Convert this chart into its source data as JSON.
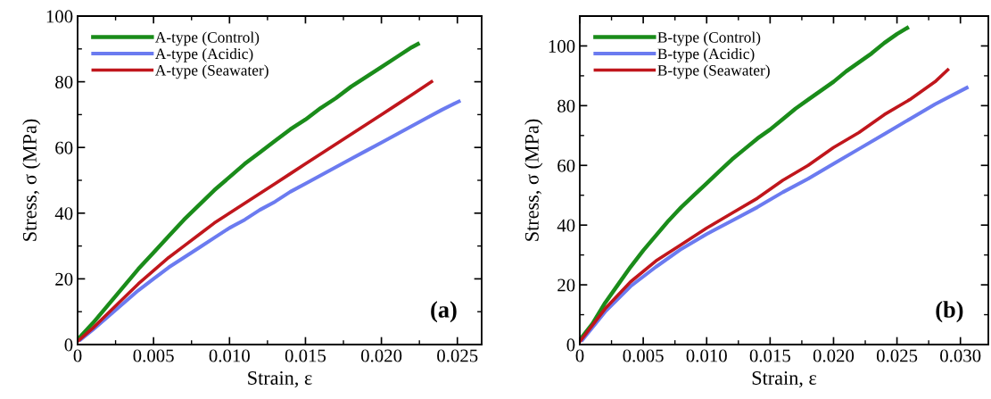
{
  "chart_data": [
    {
      "type": "line",
      "xlabel": "Strain, ε",
      "ylabel": "Stress, σ (MPa)",
      "annotations": [
        "(a)"
      ],
      "legend": "top left",
      "grid": false,
      "xlim": [
        0,
        0.0266
      ],
      "ylim": [
        0,
        100
      ],
      "xticks": [
        0,
        {
          "value": 0.0025,
          "label": null
        },
        0.005,
        {
          "value": 0.0075,
          "label": null
        },
        {
          "value": 0.01,
          "label": "0.010"
        },
        {
          "value": 0.0125,
          "label": null
        },
        0.015,
        {
          "value": 0.0175,
          "label": null
        },
        {
          "value": 0.02,
          "label": "0.020"
        },
        {
          "value": 0.0225,
          "label": null
        },
        0.025
      ],
      "yticks": [
        0,
        {
          "value": 10,
          "label": null
        },
        20,
        {
          "value": 30,
          "label": null
        },
        40,
        {
          "value": 50,
          "label": null
        },
        60,
        {
          "value": 70,
          "label": null
        },
        80,
        {
          "value": 90,
          "label": null
        },
        100
      ],
      "series": [
        {
          "name": "A-type (Control)",
          "color": "#1a8c1a",
          "x": [
            0,
            0.001,
            0.002,
            0.003,
            0.004,
            0.005,
            0.006,
            0.007,
            0.008,
            0.009,
            0.01,
            0.011,
            0.012,
            0.013,
            0.014,
            0.015,
            0.016,
            0.017,
            0.018,
            0.019,
            0.02,
            0.021,
            0.022,
            0.0224
          ],
          "values": [
            1.5,
            6.5,
            12,
            17.5,
            23,
            28,
            33,
            38,
            42.5,
            47,
            51,
            55,
            58.5,
            62,
            65.5,
            68.5,
            72,
            75,
            78.5,
            81.5,
            84.5,
            87.5,
            90.5,
            91.5
          ]
        },
        {
          "name": "A-type (Acidic)",
          "color": "#6b7bf0",
          "x": [
            0.0002,
            0.001,
            0.002,
            0.003,
            0.004,
            0.005,
            0.006,
            0.007,
            0.008,
            0.009,
            0.01,
            0.011,
            0.012,
            0.013,
            0.014,
            0.015,
            0.016,
            0.017,
            0.018,
            0.019,
            0.02,
            0.021,
            0.022,
            0.023,
            0.024,
            0.0251
          ],
          "values": [
            1.5,
            4.5,
            8.5,
            12.5,
            16.5,
            20,
            23.5,
            26.5,
            29.5,
            32.5,
            35.5,
            38,
            41,
            43.5,
            46.5,
            49,
            51.5,
            54,
            56.5,
            59,
            61.5,
            64,
            66.5,
            69,
            71.5,
            74
          ]
        },
        {
          "name": "A-type (Seawater)",
          "color": "#c0161c",
          "x": [
            0,
            0.001,
            0.002,
            0.003,
            0.004,
            0.005,
            0.006,
            0.007,
            0.008,
            0.009,
            0.01,
            0.011,
            0.012,
            0.013,
            0.014,
            0.015,
            0.016,
            0.017,
            0.018,
            0.019,
            0.02,
            0.021,
            0.022,
            0.0233
          ],
          "values": [
            1,
            5,
            9.5,
            14,
            18.5,
            22.5,
            26.5,
            30,
            33.5,
            37,
            40,
            43,
            46,
            49,
            52,
            55,
            58,
            61,
            64,
            67,
            70,
            73,
            76,
            80
          ]
        }
      ]
    },
    {
      "type": "line",
      "xlabel": "Strain, ε",
      "ylabel": "Stress, σ (MPa)",
      "annotations": [
        "(b)"
      ],
      "legend": "top left",
      "grid": false,
      "xlim": [
        0,
        0.0322
      ],
      "ylim": [
        0,
        110
      ],
      "xticks": [
        0,
        {
          "value": 0.0025,
          "label": null
        },
        0.005,
        {
          "value": 0.0075,
          "label": null
        },
        {
          "value": 0.01,
          "label": "0.010"
        },
        {
          "value": 0.0125,
          "label": null
        },
        0.015,
        {
          "value": 0.0175,
          "label": null
        },
        {
          "value": 0.02,
          "label": "0.020"
        },
        {
          "value": 0.0225,
          "label": null
        },
        0.025,
        {
          "value": 0.0275,
          "label": null
        },
        {
          "value": 0.03,
          "label": "0.030"
        }
      ],
      "yticks": [
        0,
        {
          "value": 10,
          "label": null
        },
        20,
        {
          "value": 30,
          "label": null
        },
        40,
        {
          "value": 50,
          "label": null
        },
        60,
        {
          "value": 70,
          "label": null
        },
        80,
        {
          "value": 90,
          "label": null
        },
        100
      ],
      "series": [
        {
          "name": "B-type (Control)",
          "color": "#1a8c1a",
          "x": [
            0,
            0.001,
            0.002,
            0.003,
            0.004,
            0.005,
            0.006,
            0.007,
            0.008,
            0.009,
            0.01,
            0.011,
            0.012,
            0.013,
            0.014,
            0.015,
            0.016,
            0.017,
            0.018,
            0.019,
            0.02,
            0.021,
            0.022,
            0.023,
            0.024,
            0.025,
            0.0258
          ],
          "values": [
            1.5,
            7,
            14,
            20,
            26,
            31.5,
            36.5,
            41.5,
            46,
            50,
            54,
            58,
            62,
            65.5,
            69,
            72,
            75.5,
            79,
            82,
            85,
            88,
            91.5,
            94.5,
            97.5,
            101,
            104,
            106
          ]
        },
        {
          "name": "B-type (Acidic)",
          "color": "#6b7bf0",
          "x": [
            0.0002,
            0.002,
            0.004,
            0.006,
            0.008,
            0.01,
            0.012,
            0.014,
            0.016,
            0.018,
            0.02,
            0.022,
            0.024,
            0.026,
            0.028,
            0.0305
          ],
          "values": [
            1.5,
            11,
            19.5,
            26,
            32,
            37,
            41.5,
            46,
            51,
            55.5,
            60.5,
            65.5,
            70.5,
            75.5,
            80.5,
            86
          ]
        },
        {
          "name": "B-type (Seawater)",
          "color": "#c0161c",
          "x": [
            0,
            0.002,
            0.004,
            0.006,
            0.008,
            0.01,
            0.012,
            0.014,
            0.016,
            0.018,
            0.02,
            0.022,
            0.024,
            0.026,
            0.028,
            0.029
          ],
          "values": [
            1,
            12,
            21,
            28,
            33.5,
            39,
            44,
            49,
            55,
            60,
            66,
            71,
            77,
            82,
            88,
            92
          ]
        }
      ]
    }
  ]
}
